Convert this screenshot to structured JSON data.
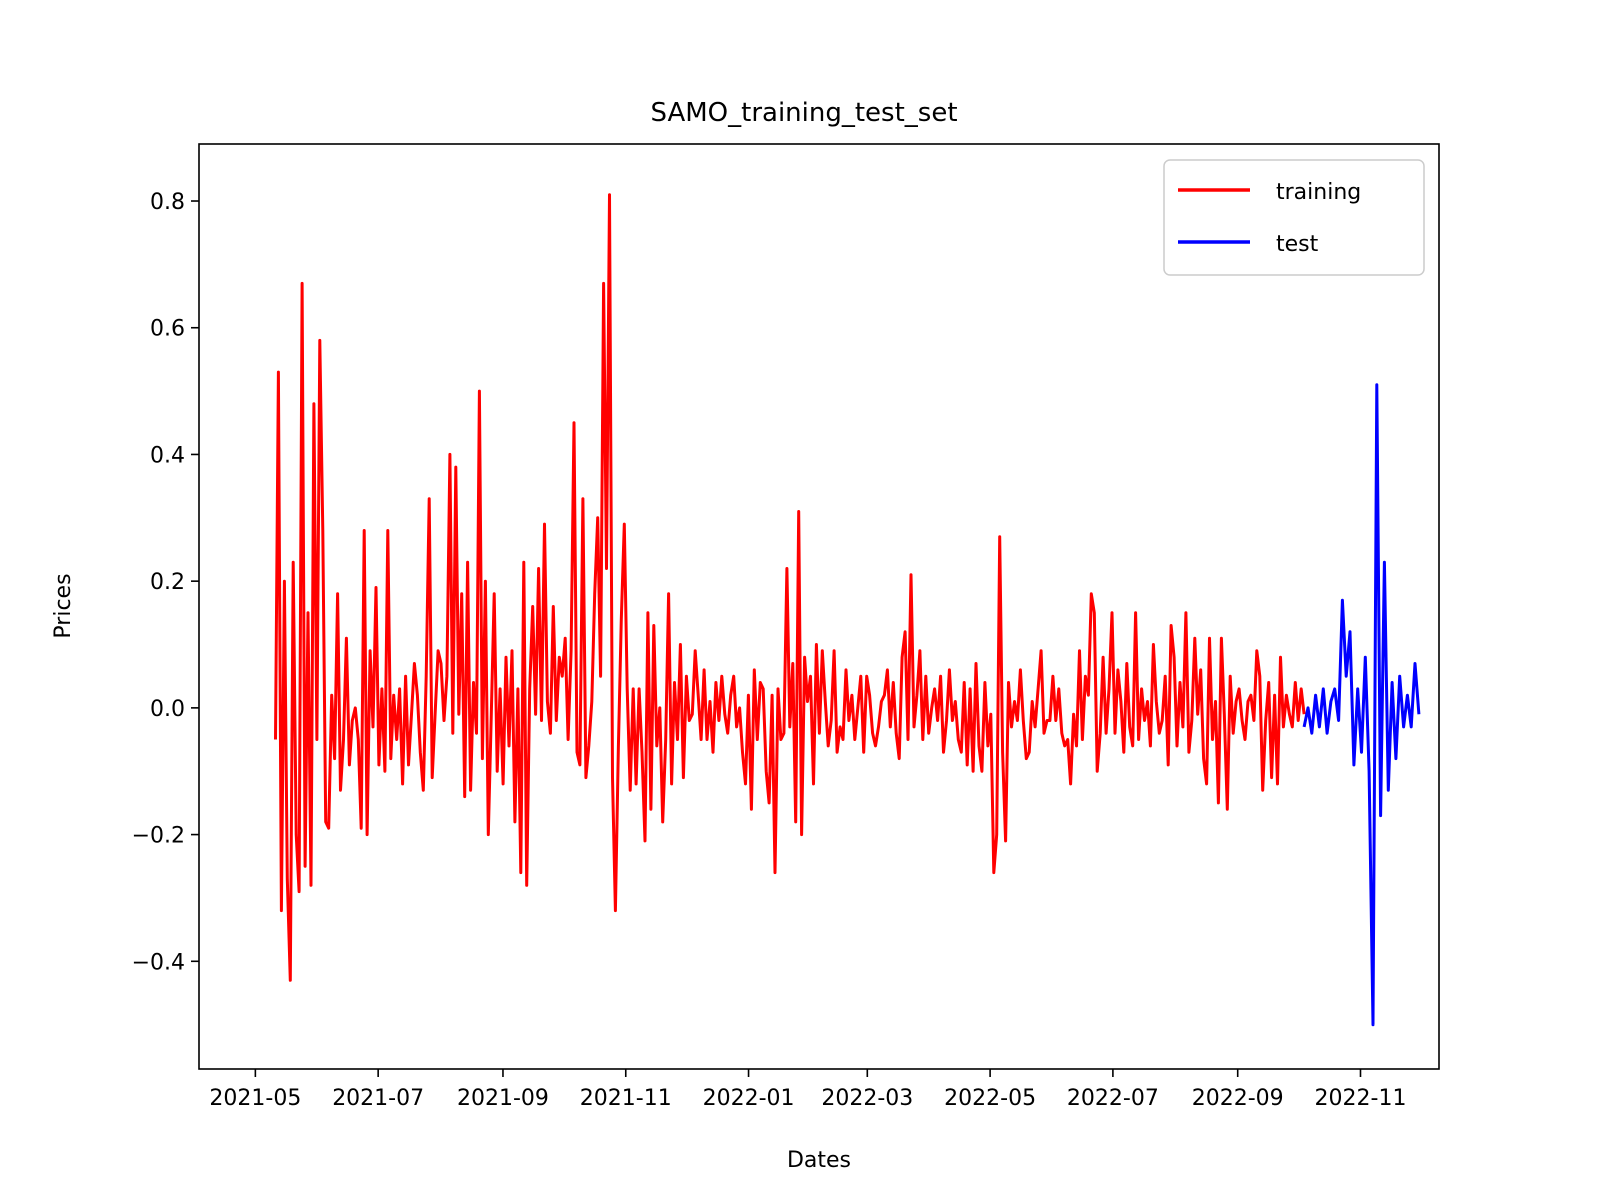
{
  "chart_data": {
    "type": "line",
    "title": "SAMO_training_test_set",
    "xlabel": "Dates",
    "ylabel": "Prices",
    "xlim": [
      "2021-04-03",
      "2022-12-10"
    ],
    "ylim": [
      -0.57,
      0.89
    ],
    "x_ticks": [
      "2021-05",
      "2021-07",
      "2021-09",
      "2021-11",
      "2022-01",
      "2022-03",
      "2022-05",
      "2022-07",
      "2022-09",
      "2022-11"
    ],
    "y_ticks": [
      -0.4,
      -0.2,
      0.0,
      0.2,
      0.4,
      0.6,
      0.8
    ],
    "y_tick_labels": [
      "−0.4",
      "−0.2",
      "0.0",
      "0.2",
      "0.4",
      "0.6",
      "0.8"
    ],
    "legend": {
      "position": "upper right"
    },
    "series": [
      {
        "name": "training",
        "color": "#ff0000",
        "x_start": "2021-05-11",
        "x_end": "2022-10-04",
        "values": [
          -0.05,
          0.53,
          -0.32,
          0.2,
          -0.27,
          -0.43,
          0.23,
          -0.2,
          -0.29,
          0.67,
          -0.25,
          0.15,
          -0.28,
          0.48,
          -0.05,
          0.58,
          0.28,
          -0.18,
          -0.19,
          0.02,
          -0.08,
          0.18,
          -0.13,
          -0.05,
          0.11,
          -0.09,
          -0.02,
          0,
          -0.05,
          -0.19,
          0.28,
          -0.2,
          0.09,
          -0.03,
          0.19,
          -0.09,
          0.03,
          -0.1,
          0.28,
          -0.08,
          0.02,
          -0.05,
          0.03,
          -0.12,
          0.05,
          -0.09,
          -0.01,
          0.07,
          0.02,
          -0.07,
          -0.13,
          0.05,
          0.33,
          -0.11,
          -0.01,
          0.09,
          0.07,
          -0.02,
          0.05,
          0.4,
          -0.04,
          0.38,
          -0.01,
          0.18,
          -0.14,
          0.23,
          -0.13,
          0.04,
          -0.04,
          0.5,
          -0.08,
          0.2,
          -0.2,
          -0.01,
          0.18,
          -0.1,
          0.03,
          -0.12,
          0.08,
          -0.06,
          0.09,
          -0.18,
          0.03,
          -0.26,
          0.23,
          -0.28,
          0.03,
          0.16,
          -0.01,
          0.22,
          -0.02,
          0.29,
          0.01,
          -0.04,
          0.16,
          -0.02,
          0.08,
          0.05,
          0.11,
          -0.05,
          0.09,
          0.45,
          -0.07,
          -0.09,
          0.33,
          -0.11,
          -0.06,
          0.01,
          0.18,
          0.3,
          0.05,
          0.67,
          0.22,
          0.81,
          -0.11,
          -0.32,
          -0.06,
          0.14,
          0.29,
          0.03,
          -0.13,
          0.03,
          -0.12,
          0.03,
          -0.07,
          -0.21,
          0.15,
          -0.16,
          0.13,
          -0.06,
          0,
          -0.18,
          -0.05,
          0.18,
          -0.12,
          0.04,
          -0.05,
          0.1,
          -0.11,
          0.05,
          -0.02,
          -0.01,
          0.09,
          0.02,
          -0.05,
          0.06,
          -0.05,
          0.01,
          -0.07,
          0.04,
          -0.02,
          0.05,
          -0.01,
          -0.04,
          0.02,
          0.05,
          -0.03,
          0,
          -0.07,
          -0.12,
          0.02,
          -0.16,
          0.06,
          -0.05,
          0.04,
          0.03,
          -0.1,
          -0.15,
          0.02,
          -0.26,
          0.03,
          -0.05,
          -0.04,
          0.22,
          -0.03,
          0.07,
          -0.18,
          0.31,
          -0.2,
          0.08,
          0.01,
          0.05,
          -0.12,
          0.1,
          -0.04,
          0.09,
          0.01,
          -0.06,
          -0.02,
          0.09,
          -0.07,
          -0.03,
          -0.05,
          0.06,
          -0.02,
          0.02,
          -0.05,
          0,
          0.05,
          -0.07,
          0.05,
          0.02,
          -0.04,
          -0.06,
          -0.03,
          0.01,
          0.02,
          0.06,
          -0.03,
          0.04,
          -0.04,
          -0.08,
          0.08,
          0.12,
          -0.05,
          0.21,
          -0.03,
          0.02,
          0.09,
          -0.05,
          0.05,
          -0.04,
          0,
          0.03,
          -0.02,
          0.05,
          -0.07,
          -0.02,
          0.06,
          -0.02,
          0.01,
          -0.05,
          -0.07,
          0.04,
          -0.09,
          0.03,
          -0.1,
          0.07,
          -0.06,
          -0.1,
          0.04,
          -0.06,
          -0.01,
          -0.26,
          -0.2,
          0.27,
          -0.07,
          -0.21,
          0.04,
          -0.03,
          0.01,
          -0.02,
          0.06,
          -0.02,
          -0.08,
          -0.07,
          0.01,
          -0.03,
          0.03,
          0.09,
          -0.04,
          -0.02,
          -0.02,
          0.05,
          -0.02,
          0.03,
          -0.04,
          -0.06,
          -0.05,
          -0.12,
          -0.01,
          -0.06,
          0.09,
          -0.05,
          0.05,
          0.02,
          0.18,
          0.15,
          -0.1,
          -0.04,
          0.08,
          -0.04,
          0.03,
          0.15,
          -0.04,
          0.06,
          0.01,
          -0.07,
          0.07,
          -0.03,
          -0.06,
          0.15,
          -0.05,
          0.03,
          -0.02,
          0.01,
          -0.06,
          0.1,
          0.01,
          -0.04,
          -0.02,
          0.05,
          -0.09,
          0.13,
          0.08,
          -0.06,
          0.04,
          -0.03,
          0.15,
          -0.07,
          -0.02,
          0.11,
          -0.01,
          0.06,
          -0.08,
          -0.12,
          0.11,
          -0.05,
          0.01,
          -0.15,
          0.11,
          -0.01,
          -0.16,
          0.05,
          -0.04,
          0.01,
          0.03,
          -0.02,
          -0.05,
          0.01,
          0.02,
          -0.02,
          0.09,
          0.05,
          -0.13,
          -0.02,
          0.04,
          -0.11,
          0.02,
          -0.12,
          0.08,
          -0.03,
          0.02,
          -0.01,
          -0.03,
          0.04,
          -0.02,
          0.03,
          -0.01
        ]
      },
      {
        "name": "test",
        "color": "#0000ff",
        "x_start": "2022-10-04",
        "x_end": "2022-11-30",
        "values": [
          -0.03,
          0,
          -0.04,
          0.02,
          -0.03,
          0.03,
          -0.04,
          0.01,
          0.03,
          -0.02,
          0.17,
          0.05,
          0.12,
          -0.09,
          0.03,
          -0.07,
          0.08,
          -0.1,
          -0.5,
          0.51,
          -0.17,
          0.23,
          -0.13,
          0.04,
          -0.08,
          0.05,
          -0.03,
          0.02,
          -0.03,
          0.07,
          -0.01
        ]
      }
    ]
  }
}
